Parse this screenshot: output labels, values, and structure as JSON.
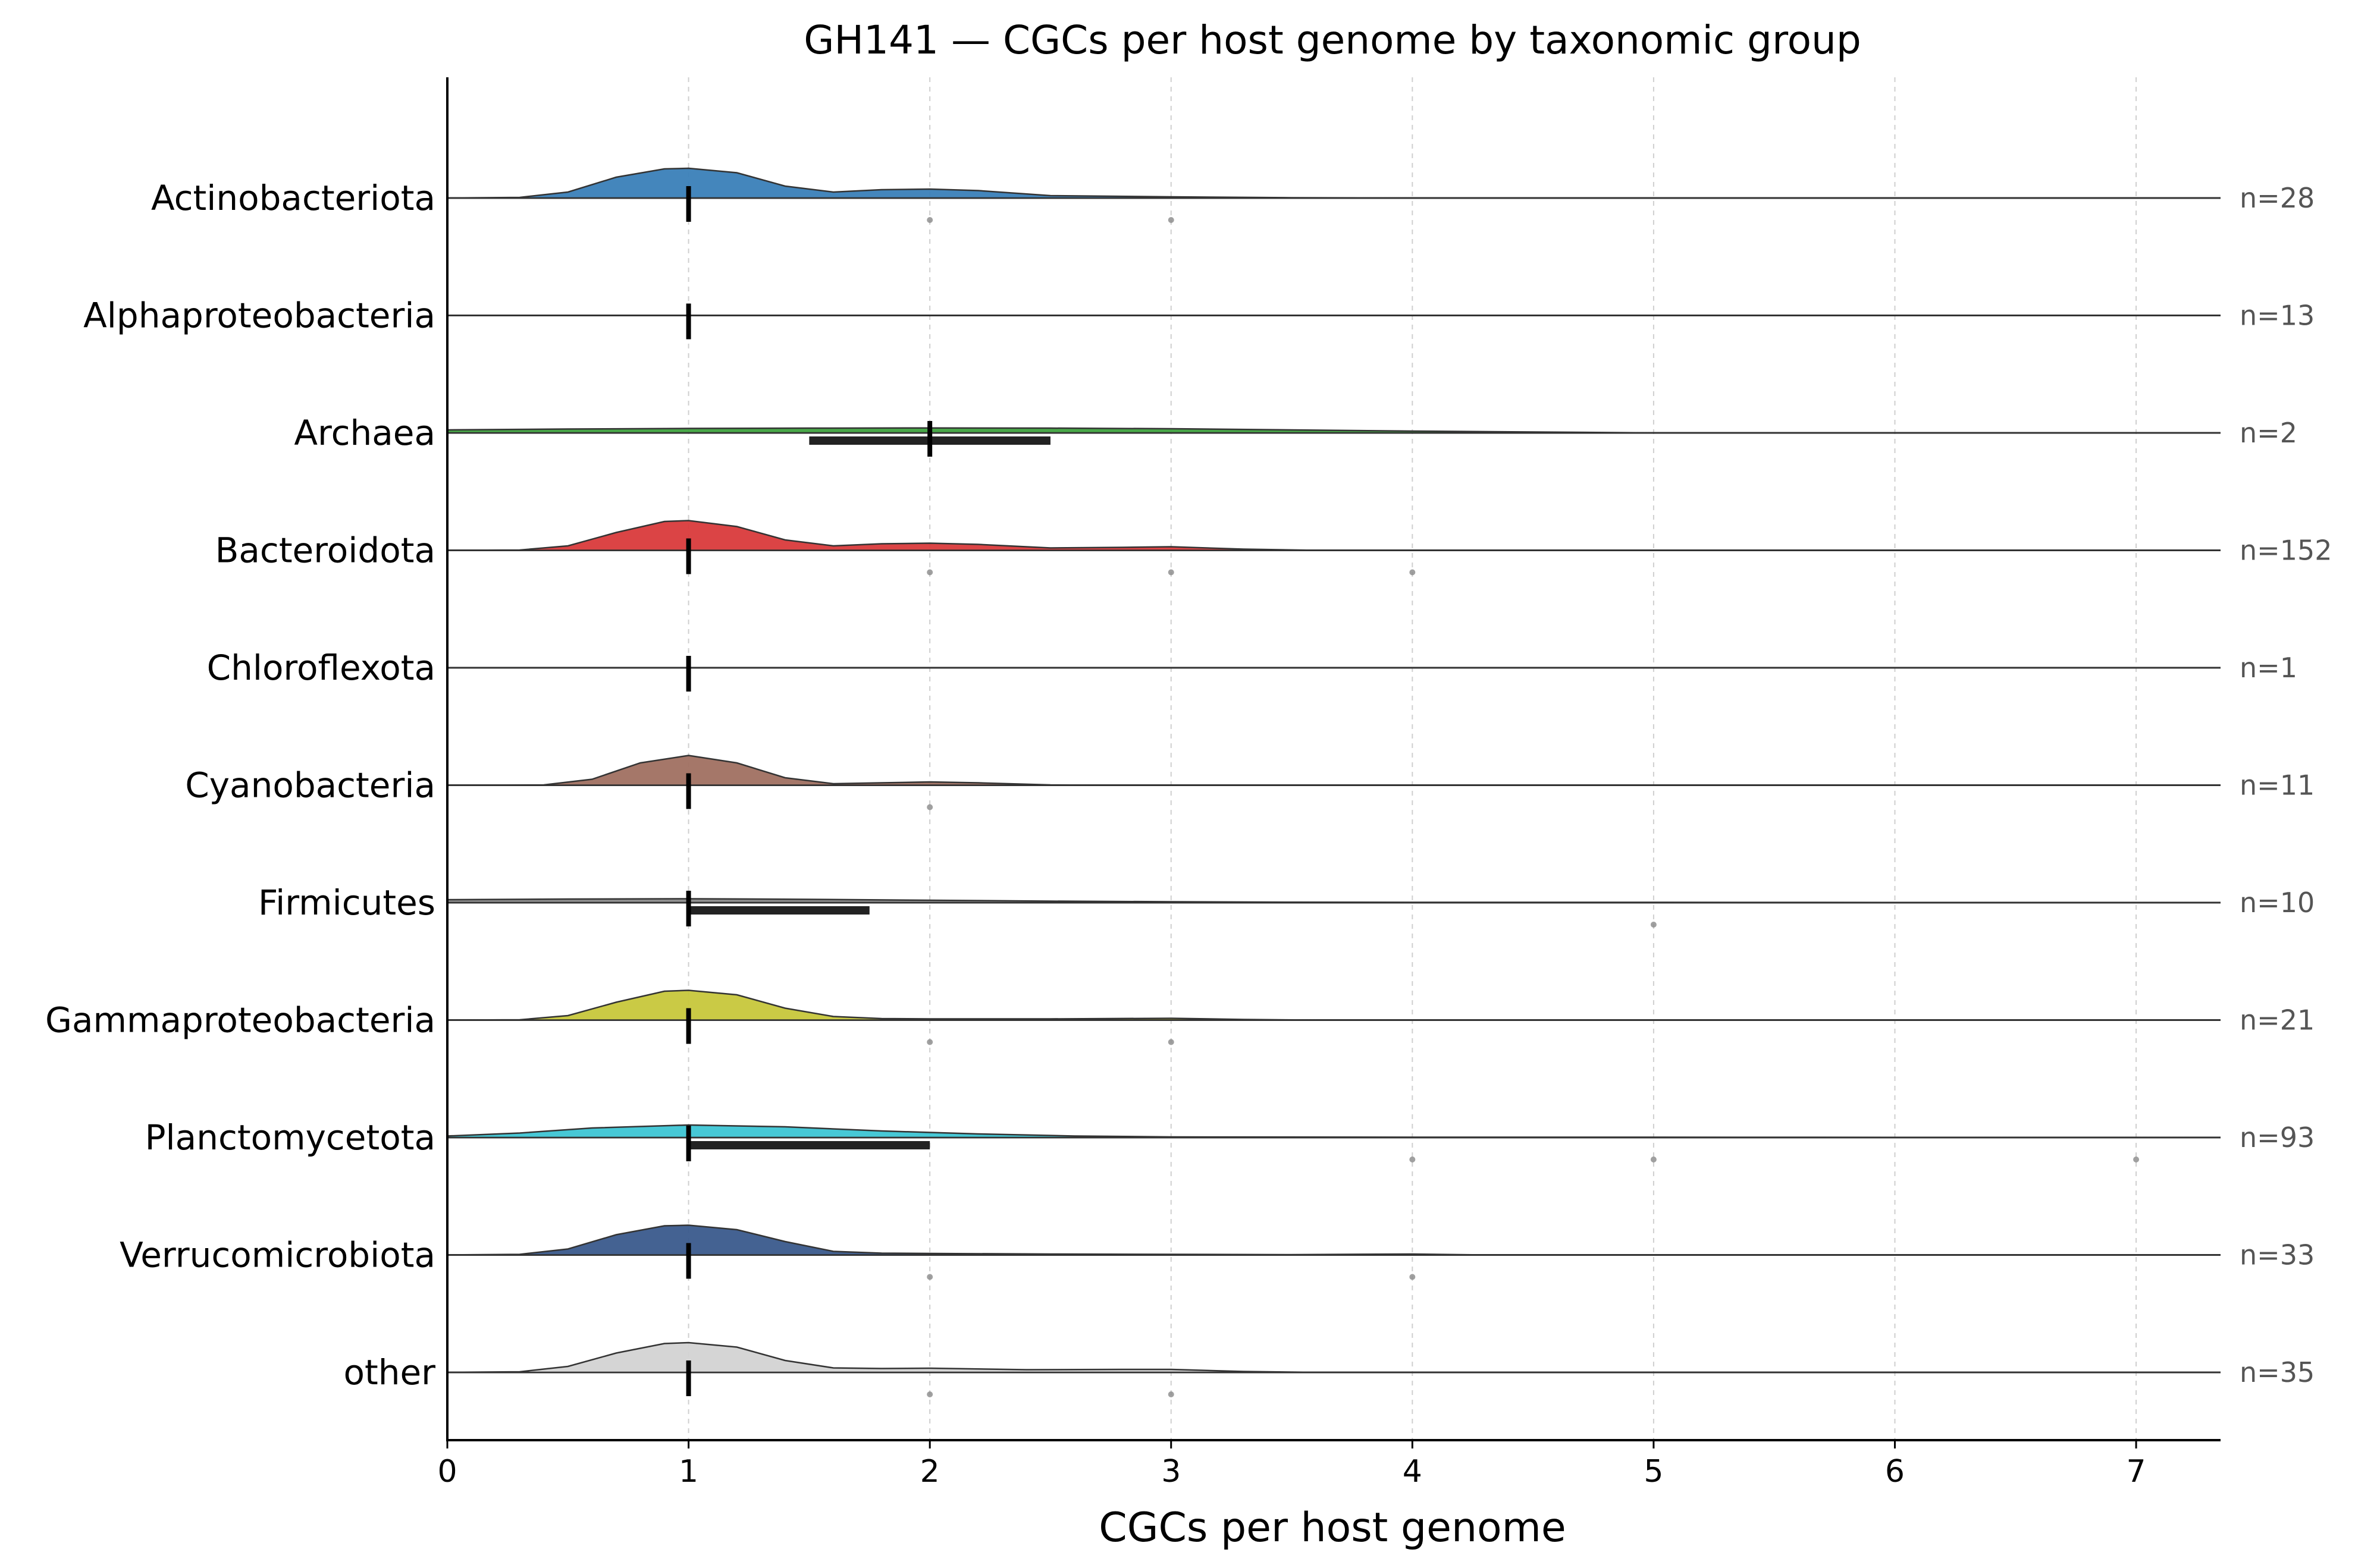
{
  "chart_data": {
    "type": "ridgeline",
    "title": "GH141 — CGCs per host genome by taxonomic group",
    "xlabel": "CGCs per host genome",
    "ylabel": "",
    "xlim": [
      0,
      7.35
    ],
    "xticks": [
      "0",
      "1",
      "2",
      "3",
      "4",
      "5",
      "6",
      "7"
    ],
    "grid": "vertical dashed",
    "groups": [
      {
        "name": "Actinobacteriota",
        "n_label": "n=28",
        "color": "#3a7fb8",
        "median": 1,
        "iqr": null,
        "outliers": [
          2,
          3
        ],
        "density": [
          [
            0.0,
            0.0
          ],
          [
            0.3,
            0.02
          ],
          [
            0.5,
            0.2
          ],
          [
            0.7,
            0.7
          ],
          [
            0.9,
            0.98
          ],
          [
            1.0,
            1.0
          ],
          [
            1.2,
            0.85
          ],
          [
            1.4,
            0.4
          ],
          [
            1.6,
            0.2
          ],
          [
            1.8,
            0.28
          ],
          [
            2.0,
            0.3
          ],
          [
            2.2,
            0.25
          ],
          [
            2.5,
            0.08
          ],
          [
            3.0,
            0.04
          ],
          [
            3.5,
            0.01
          ],
          [
            4.0,
            0.0
          ],
          [
            7.35,
            0.0
          ]
        ]
      },
      {
        "name": "Alphaproteobacteria",
        "n_label": "n=13",
        "color": "#f28e2b",
        "median": 1,
        "iqr": null,
        "outliers": [],
        "density": []
      },
      {
        "name": "Archaea",
        "n_label": "n=2",
        "color": "#3fa33f",
        "median": 2,
        "iqr": [
          1.5,
          2.5
        ],
        "outliers": [],
        "density": [
          [
            0.0,
            0.1
          ],
          [
            0.5,
            0.13
          ],
          [
            1.0,
            0.15
          ],
          [
            1.5,
            0.16
          ],
          [
            2.0,
            0.165
          ],
          [
            2.5,
            0.16
          ],
          [
            3.0,
            0.14
          ],
          [
            3.5,
            0.1
          ],
          [
            4.0,
            0.06
          ],
          [
            4.5,
            0.03
          ],
          [
            5.0,
            0.0
          ],
          [
            7.35,
            0.0
          ]
        ]
      },
      {
        "name": "Bacteroidota",
        "n_label": "n=152",
        "color": "#d93a3b",
        "median": 1,
        "iqr": null,
        "outliers": [
          2,
          3,
          4
        ],
        "density": [
          [
            0.0,
            0.0
          ],
          [
            0.3,
            0.01
          ],
          [
            0.5,
            0.15
          ],
          [
            0.7,
            0.6
          ],
          [
            0.9,
            0.97
          ],
          [
            1.0,
            1.0
          ],
          [
            1.2,
            0.8
          ],
          [
            1.4,
            0.35
          ],
          [
            1.6,
            0.15
          ],
          [
            1.8,
            0.22
          ],
          [
            2.0,
            0.24
          ],
          [
            2.2,
            0.2
          ],
          [
            2.5,
            0.08
          ],
          [
            2.8,
            0.1
          ],
          [
            3.0,
            0.12
          ],
          [
            3.3,
            0.04
          ],
          [
            3.6,
            0.0
          ],
          [
            7.35,
            0.0
          ]
        ]
      },
      {
        "name": "Chloroflexota",
        "n_label": "n=1",
        "color": "#8c564b",
        "median": 1,
        "iqr": null,
        "outliers": [],
        "density": []
      },
      {
        "name": "Cyanobacteria",
        "n_label": "n=11",
        "color": "#a07061",
        "median": 1,
        "iqr": null,
        "outliers": [
          2
        ],
        "density": [
          [
            0.0,
            0.0
          ],
          [
            0.4,
            0.01
          ],
          [
            0.6,
            0.2
          ],
          [
            0.8,
            0.75
          ],
          [
            1.0,
            1.0
          ],
          [
            1.2,
            0.75
          ],
          [
            1.4,
            0.25
          ],
          [
            1.6,
            0.05
          ],
          [
            1.8,
            0.08
          ],
          [
            2.0,
            0.11
          ],
          [
            2.2,
            0.08
          ],
          [
            2.5,
            0.01
          ],
          [
            2.7,
            0.0
          ],
          [
            7.35,
            0.0
          ]
        ]
      },
      {
        "name": "Firmicutes",
        "n_label": "n=10",
        "color": "#8a8a8a",
        "median": 1,
        "iqr": [
          1.0,
          1.75
        ],
        "outliers": [
          5
        ],
        "density": [
          [
            0.0,
            0.1
          ],
          [
            0.5,
            0.12
          ],
          [
            1.0,
            0.13
          ],
          [
            1.5,
            0.11
          ],
          [
            2.0,
            0.08
          ],
          [
            2.5,
            0.05
          ],
          [
            3.0,
            0.03
          ],
          [
            3.5,
            0.015
          ],
          [
            4.0,
            0.01
          ],
          [
            4.5,
            0.01
          ],
          [
            5.0,
            0.01
          ],
          [
            6.0,
            0.005
          ],
          [
            7.35,
            0.0
          ]
        ]
      },
      {
        "name": "Gammaproteobacteria",
        "n_label": "n=21",
        "color": "#c7c73b",
        "median": 1,
        "iqr": null,
        "outliers": [
          2,
          3
        ],
        "density": [
          [
            0.0,
            0.0
          ],
          [
            0.3,
            0.01
          ],
          [
            0.5,
            0.15
          ],
          [
            0.7,
            0.6
          ],
          [
            0.9,
            0.97
          ],
          [
            1.0,
            1.0
          ],
          [
            1.2,
            0.85
          ],
          [
            1.4,
            0.4
          ],
          [
            1.6,
            0.12
          ],
          [
            1.8,
            0.05
          ],
          [
            2.0,
            0.04
          ],
          [
            2.5,
            0.04
          ],
          [
            3.0,
            0.06
          ],
          [
            3.3,
            0.02
          ],
          [
            3.6,
            0.0
          ],
          [
            7.35,
            0.0
          ]
        ]
      },
      {
        "name": "Planctomycetota",
        "n_label": "n=93",
        "color": "#3dc5d4",
        "median": 1,
        "iqr": [
          1.0,
          2.0
        ],
        "outliers": [
          4,
          5,
          7
        ],
        "density": [
          [
            0.0,
            0.05
          ],
          [
            0.3,
            0.15
          ],
          [
            0.6,
            0.32
          ],
          [
            1.0,
            0.42
          ],
          [
            1.4,
            0.36
          ],
          [
            1.8,
            0.22
          ],
          [
            2.2,
            0.12
          ],
          [
            2.6,
            0.05
          ],
          [
            3.0,
            0.02
          ],
          [
            4.0,
            0.01
          ],
          [
            5.0,
            0.01
          ],
          [
            6.0,
            0.005
          ],
          [
            7.35,
            0.0
          ]
        ]
      },
      {
        "name": "Verrucomicrobiota",
        "n_label": "n=33",
        "color": "#3a5a8c",
        "median": 1,
        "iqr": null,
        "outliers": [
          2,
          4
        ],
        "density": [
          [
            0.0,
            0.0
          ],
          [
            0.3,
            0.02
          ],
          [
            0.5,
            0.2
          ],
          [
            0.7,
            0.68
          ],
          [
            0.9,
            0.98
          ],
          [
            1.0,
            1.0
          ],
          [
            1.2,
            0.85
          ],
          [
            1.4,
            0.45
          ],
          [
            1.6,
            0.12
          ],
          [
            1.8,
            0.06
          ],
          [
            2.0,
            0.05
          ],
          [
            2.5,
            0.03
          ],
          [
            3.0,
            0.02
          ],
          [
            3.5,
            0.01
          ],
          [
            4.0,
            0.03
          ],
          [
            4.3,
            0.0
          ],
          [
            7.35,
            0.0
          ]
        ]
      },
      {
        "name": "other",
        "n_label": "n=35",
        "color": "#d3d3d3",
        "median": 1,
        "iqr": null,
        "outliers": [
          2,
          3
        ],
        "density": [
          [
            0.0,
            0.0
          ],
          [
            0.3,
            0.02
          ],
          [
            0.5,
            0.2
          ],
          [
            0.7,
            0.65
          ],
          [
            0.9,
            0.97
          ],
          [
            1.0,
            1.0
          ],
          [
            1.2,
            0.85
          ],
          [
            1.4,
            0.4
          ],
          [
            1.6,
            0.15
          ],
          [
            1.8,
            0.13
          ],
          [
            2.0,
            0.14
          ],
          [
            2.4,
            0.09
          ],
          [
            2.8,
            0.1
          ],
          [
            3.0,
            0.1
          ],
          [
            3.3,
            0.03
          ],
          [
            3.6,
            0.0
          ],
          [
            7.35,
            0.0
          ]
        ]
      }
    ]
  }
}
